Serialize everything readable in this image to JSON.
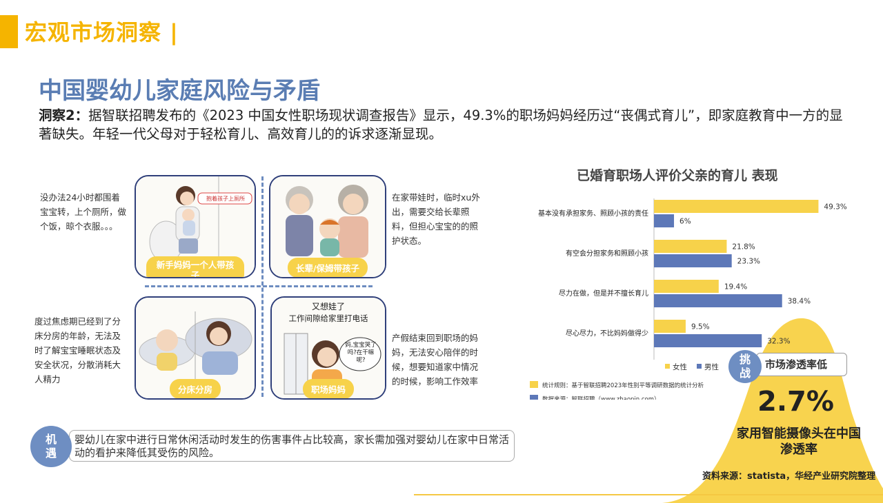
{
  "header": {
    "title": "宏观市场洞察 |"
  },
  "subtitle": "中国婴幼儿家庭风险与矛盾",
  "insight": {
    "label": "洞察2",
    "text": "据智联招聘发布的《2023 中国女性职场现状调查报告》显示，49.3%的职场妈妈经历过“丧偶式育儿”，即家庭教育中一方的显著缺失。年轻一代父母对于轻松育儿、高效育儿的的诉求逐渐显现。"
  },
  "panels": [
    {
      "label": "新手妈妈一个人带孩子",
      "bubble": "抱着孩子上厕所",
      "side_text": "没办法24小时都围着宝宝转，上个厕所，做个饭，晾个衣服。。。"
    },
    {
      "label": "长辈/保姆带孩子",
      "side_text": "在家带娃时，临时xu外出，需要交给长辈照料，但担心宝宝的的照护状态。"
    },
    {
      "label": "分床分房",
      "side_text": "度过焦虑期已经到了分床分房的年龄，无法及时了解宝宝睡眠状态及安全状况，分散消耗大人精力"
    },
    {
      "label": "职场妈妈",
      "caption_top": "又想娃了",
      "caption_bottom": "工作间隙给家里打电话",
      "phone_bubble": "妈,宝宝哭了吗?在干嘛呢?",
      "side_text": "产假结束回到职场的妈妈，无法安心陪伴的时候，想要知道家中情况的时候，影响工作效率"
    }
  ],
  "chart_data": {
    "type": "bar",
    "orientation": "horizontal",
    "title": "已婚育职场人评价父亲的育儿 表现",
    "categories": [
      "基本没有承担家务、照顾小孩的责任",
      "有空会分担家务和照顾小孩",
      "尽力在做，但是并不擅长育儿",
      "尽心尽力，不比妈妈做得少"
    ],
    "series": [
      {
        "name": "女性",
        "color": "#f7d24a",
        "values": [
          49.3,
          21.8,
          19.4,
          9.5
        ],
        "labels": [
          "49.3%",
          "21.8%",
          "19.4%",
          "9.5%"
        ]
      },
      {
        "name": "男性",
        "color": "#5d78b8",
        "values": [
          6,
          23.3,
          38.4,
          32.3
        ],
        "labels": [
          "6%",
          "23.3%",
          "38.4%",
          "32.3%"
        ]
      }
    ],
    "xlim": [
      0,
      55
    ],
    "legend_position": "bottom-left",
    "notes": [
      {
        "color": "#f7d24a",
        "text": "统计规则：基于智联招聘2023年性别平等调研数据的统计分析"
      },
      {
        "color": "#5d78b8",
        "text": "数据来源：智联招聘（www.zhaopin.com）"
      }
    ]
  },
  "challenge": {
    "label": "挑战",
    "title": "市场渗透率低",
    "value": "2.7%",
    "description": "家用智能摄像头在中国渗透率",
    "source": "资料来源：statista，华经产业研究院整理"
  },
  "opportunity": {
    "label": "机遇",
    "text": "婴幼儿在家中进行日常休闲活动时发生的伤害事件占比较高，家长需加强对婴幼儿在家中日常活动的看护来降低其受伤的风险。"
  },
  "colors": {
    "accent_yellow": "#f5b400",
    "title_blue": "#5a7db3",
    "circle_blue": "#6e8ec2",
    "bar_yellow": "#f7d24a",
    "bar_blue": "#5d78b8"
  }
}
